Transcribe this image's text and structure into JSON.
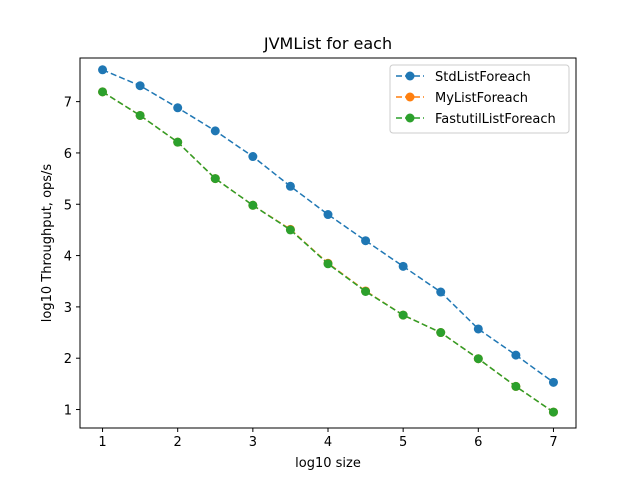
{
  "chart_data": {
    "type": "line",
    "title": "JVMList for each",
    "xlabel": "log10 size",
    "ylabel": "log10 Throughput, ops/s",
    "xlim": [
      0.7,
      7.3
    ],
    "ylim": [
      0.64,
      7.85
    ],
    "xticks": [
      1,
      2,
      3,
      4,
      5,
      6,
      7
    ],
    "yticks": [
      1,
      2,
      3,
      4,
      5,
      6,
      7
    ],
    "grid": false,
    "legend_position": "top-right",
    "line_style": "dashed",
    "marker": "circle",
    "x": [
      1,
      1.5,
      2,
      2.5,
      3,
      3.5,
      4,
      4.5,
      5,
      5.5,
      6,
      6.5,
      7
    ],
    "series": [
      {
        "name": "StdListForeach",
        "color": "#1f77b4",
        "values": [
          7.62,
          7.31,
          6.88,
          6.43,
          5.93,
          5.35,
          4.8,
          4.29,
          3.79,
          3.29,
          2.57,
          2.06,
          1.53
        ]
      },
      {
        "name": "MyListForeach",
        "color": "#ff7f0e",
        "values": [
          7.19,
          6.73,
          6.21,
          5.5,
          4.98,
          4.51,
          3.85,
          3.31,
          2.84,
          2.5,
          1.99,
          1.45,
          0.95
        ]
      },
      {
        "name": "FastutilListForeach",
        "color": "#2ca02c",
        "values": [
          7.19,
          6.73,
          6.21,
          5.5,
          4.98,
          4.5,
          3.84,
          3.3,
          2.84,
          2.5,
          1.99,
          1.45,
          0.95
        ]
      }
    ]
  }
}
